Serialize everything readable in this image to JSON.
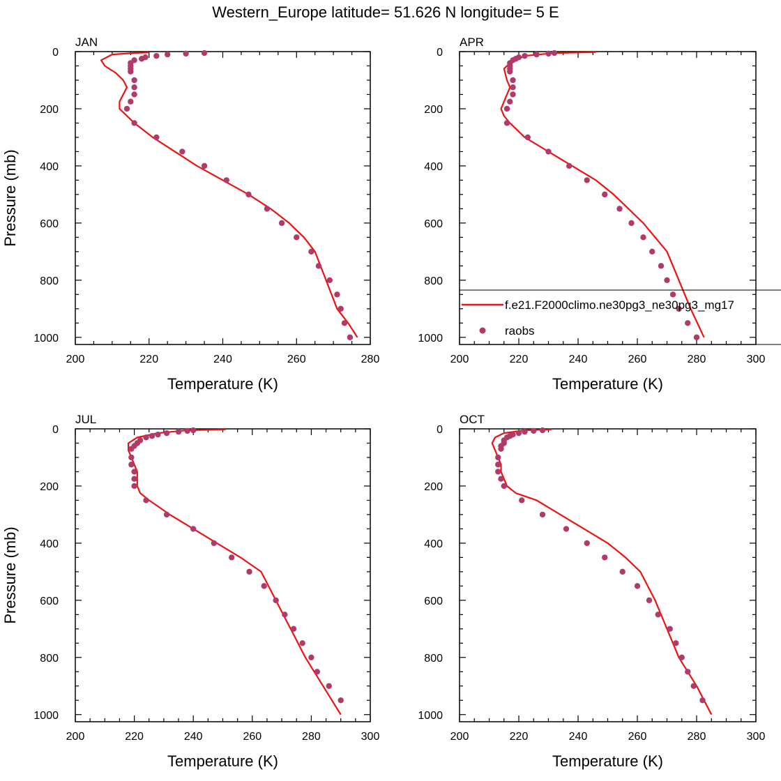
{
  "title": "Western_Europe  latitude= 51.626 N longitude= 5 E",
  "legend": {
    "model_label": "f.e21.F2000climo.ne30pg3_ne30pg3_mg17",
    "obs_label": "raobs"
  },
  "colors": {
    "model_line": "#ee1111",
    "obs_marker": "#b03a6a",
    "axis": "#000000"
  },
  "chart_data": [
    {
      "type": "line",
      "panel": "JAN",
      "xlabel": "Temperature (K)",
      "ylabel": "Pressure (mb)",
      "xlim": [
        200,
        280
      ],
      "ylim": [
        1025,
        0
      ],
      "xticks": [
        200,
        220,
        240,
        260,
        280
      ],
      "yticks": [
        0,
        200,
        400,
        600,
        800,
        1000
      ],
      "series": [
        {
          "name": "f.e21.F2000climo.ne30pg3_ne30pg3_mg17",
          "kind": "line",
          "x": [
            220,
            216,
            210,
            207,
            208,
            211,
            213,
            214,
            213,
            212,
            212,
            214,
            216,
            221,
            227,
            233,
            240,
            247,
            253,
            258,
            262,
            265,
            268,
            271,
            274,
            276.5
          ],
          "y": [
            3,
            5,
            10,
            30,
            50,
            75,
            100,
            125,
            150,
            175,
            200,
            225,
            250,
            300,
            350,
            400,
            450,
            500,
            550,
            600,
            650,
            700,
            800,
            900,
            950,
            1000
          ]
        },
        {
          "name": "raobs",
          "kind": "scatter",
          "x": [
            235,
            230,
            225,
            222,
            219,
            218,
            216,
            215,
            215,
            215,
            215,
            216,
            216,
            216,
            215,
            214,
            216,
            222,
            229,
            235,
            241,
            247,
            252,
            256,
            260,
            264,
            266,
            269,
            271,
            272,
            273,
            274.5
          ],
          "y": [
            5,
            7,
            10,
            15,
            20,
            25,
            30,
            40,
            50,
            60,
            70,
            100,
            125,
            150,
            175,
            200,
            250,
            300,
            350,
            400,
            450,
            500,
            550,
            600,
            650,
            700,
            750,
            800,
            850,
            900,
            950,
            1000
          ]
        }
      ]
    },
    {
      "type": "line",
      "panel": "APR",
      "xlabel": "Temperature (K)",
      "ylabel": "",
      "xlim": [
        200,
        300
      ],
      "ylim": [
        1025,
        0
      ],
      "xticks": [
        200,
        220,
        240,
        260,
        280,
        300
      ],
      "yticks": [
        0,
        200,
        400,
        600,
        800,
        1000
      ],
      "series": [
        {
          "name": "f.e21.F2000climo.ne30pg3_ne30pg3_mg17",
          "kind": "line",
          "x": [
            246,
            232,
            222,
            217,
            215,
            216,
            217,
            216,
            215,
            214,
            215,
            217,
            222,
            230,
            238,
            246,
            252,
            257,
            262,
            266,
            270,
            274,
            278,
            282.5
          ],
          "y": [
            2,
            5,
            15,
            40,
            60,
            100,
            125,
            150,
            175,
            200,
            225,
            250,
            300,
            350,
            400,
            450,
            500,
            550,
            600,
            650,
            700,
            800,
            900,
            1000
          ]
        },
        {
          "name": "raobs",
          "kind": "scatter",
          "x": [
            232,
            230,
            226,
            222,
            220,
            219,
            218,
            217,
            217,
            217,
            217,
            218,
            218,
            218,
            217,
            216,
            216,
            223,
            230,
            237,
            243,
            249,
            254,
            258,
            262,
            265,
            268,
            270,
            272,
            274,
            277,
            280
          ],
          "y": [
            5,
            7,
            10,
            15,
            20,
            25,
            30,
            40,
            50,
            60,
            70,
            100,
            125,
            150,
            175,
            200,
            250,
            300,
            350,
            400,
            450,
            500,
            550,
            600,
            650,
            700,
            750,
            800,
            850,
            900,
            950,
            1000
          ]
        }
      ]
    },
    {
      "type": "line",
      "panel": "JUL",
      "xlabel": "Temperature (K)",
      "ylabel": "Pressure (mb)",
      "xlim": [
        200,
        300
      ],
      "ylim": [
        1025,
        0
      ],
      "xticks": [
        200,
        220,
        240,
        260,
        280,
        300
      ],
      "yticks": [
        0,
        200,
        400,
        600,
        800,
        1000
      ],
      "series": [
        {
          "name": "f.e21.F2000climo.ne30pg3_ne30pg3_mg17",
          "kind": "line",
          "x": [
            251,
            238,
            228,
            221,
            218,
            218,
            219,
            220,
            221,
            221,
            221,
            222,
            225,
            232,
            240,
            248,
            256,
            263,
            268,
            273,
            278,
            284,
            290
          ],
          "y": [
            2,
            5,
            15,
            30,
            50,
            75,
            100,
            125,
            150,
            175,
            200,
            225,
            250,
            300,
            350,
            400,
            450,
            500,
            600,
            700,
            800,
            900,
            1000
          ]
        },
        {
          "name": "raobs",
          "kind": "scatter",
          "x": [
            240,
            238,
            235,
            231,
            228,
            226,
            224,
            222,
            221,
            220,
            219,
            219,
            219,
            220,
            220,
            220,
            224,
            231,
            240,
            247,
            253,
            259,
            264,
            268,
            271,
            274,
            277,
            280,
            282,
            286,
            290
          ],
          "y": [
            5,
            7,
            10,
            15,
            20,
            25,
            30,
            40,
            50,
            60,
            70,
            100,
            125,
            150,
            175,
            200,
            250,
            300,
            350,
            400,
            450,
            500,
            550,
            600,
            650,
            700,
            750,
            800,
            850,
            900,
            950
          ]
        }
      ]
    },
    {
      "type": "line",
      "panel": "OCT",
      "xlabel": "Temperature (K)",
      "ylabel": "",
      "xlim": [
        200,
        300
      ],
      "ylim": [
        1025,
        0
      ],
      "xticks": [
        200,
        220,
        240,
        260,
        280,
        300
      ],
      "yticks": [
        0,
        200,
        400,
        600,
        800,
        1000
      ],
      "series": [
        {
          "name": "f.e21.F2000climo.ne30pg3_ne30pg3_mg17",
          "kind": "line",
          "x": [
            231,
            222,
            215,
            212,
            211,
            212,
            213,
            214,
            214,
            215,
            216,
            219,
            226,
            234,
            242,
            250,
            256,
            261,
            266,
            270,
            274,
            280,
            285
          ],
          "y": [
            2,
            5,
            15,
            30,
            50,
            75,
            100,
            125,
            150,
            175,
            200,
            225,
            250,
            300,
            350,
            400,
            450,
            500,
            600,
            700,
            800,
            900,
            1000
          ]
        },
        {
          "name": "raobs",
          "kind": "scatter",
          "x": [
            228,
            225,
            222,
            220,
            218,
            217,
            216,
            215,
            215,
            214,
            214,
            213,
            213,
            213,
            214,
            215,
            221,
            228,
            236,
            243,
            249,
            255,
            260,
            264,
            267,
            271,
            273,
            275,
            277,
            279,
            282
          ],
          "y": [
            5,
            7,
            10,
            15,
            20,
            25,
            30,
            40,
            50,
            60,
            70,
            100,
            125,
            150,
            175,
            200,
            250,
            300,
            350,
            400,
            450,
            500,
            550,
            600,
            650,
            700,
            750,
            800,
            850,
            900,
            950
          ]
        }
      ]
    }
  ]
}
